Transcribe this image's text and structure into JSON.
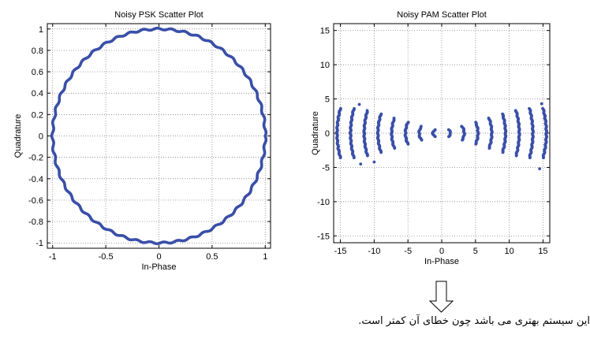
{
  "chart_data": [
    {
      "type": "scatter",
      "title": "Noisy PSK Scatter Plot",
      "xlabel": "In-Phase",
      "ylabel": "Quadrature",
      "xlim": [
        -1.05,
        1.05
      ],
      "ylim": [
        -1.05,
        1.05
      ],
      "xticks": [
        -1,
        -0.5,
        0,
        0.5,
        1
      ],
      "xtick_labels": [
        "-1",
        "-0.5",
        "0",
        "0.5",
        "1"
      ],
      "yticks": [
        -1,
        -0.8,
        -0.6,
        -0.4,
        -0.2,
        0,
        0.2,
        0.4,
        0.6,
        0.8,
        1
      ],
      "ytick_labels": [
        "-1",
        "-0.8",
        "-0.6",
        "-0.4",
        "-0.2",
        "0",
        "0.2",
        "0.4",
        "0.6",
        "0.8",
        "1"
      ],
      "grid": true,
      "shape": "circle",
      "radius": 1,
      "point_color": "#3a4fa8"
    },
    {
      "type": "scatter",
      "title": "Noisy PAM Scatter Plot",
      "xlabel": "In-Phase",
      "ylabel": "Quadrature",
      "xlim": [
        -16,
        16
      ],
      "ylim": [
        -16,
        16
      ],
      "xticks": [
        -15,
        -10,
        -5,
        0,
        5,
        10,
        15
      ],
      "xtick_labels": [
        "-15",
        "-10",
        "-5",
        "0",
        "5",
        "10",
        "15"
      ],
      "yticks": [
        -15,
        -10,
        -5,
        0,
        5,
        10,
        15
      ],
      "ytick_labels": [
        "-15",
        "-10",
        "-5",
        "0",
        "5",
        "10",
        "15"
      ],
      "grid": true,
      "clusters": [
        {
          "x": -15,
          "half_height": 3.6
        },
        {
          "x": -13,
          "half_height": 3.6
        },
        {
          "x": -11,
          "half_height": 3.3
        },
        {
          "x": -9,
          "half_height": 2.8
        },
        {
          "x": -7,
          "half_height": 2.2
        },
        {
          "x": -5,
          "half_height": 1.6
        },
        {
          "x": -3,
          "half_height": 1.0
        },
        {
          "x": -1,
          "half_height": 0.5
        },
        {
          "x": 1,
          "half_height": 0.5
        },
        {
          "x": 3,
          "half_height": 1.0
        },
        {
          "x": 5,
          "half_height": 1.6
        },
        {
          "x": 7,
          "half_height": 2.2
        },
        {
          "x": 9,
          "half_height": 2.8
        },
        {
          "x": 11,
          "half_height": 3.3
        },
        {
          "x": 13,
          "half_height": 3.6
        },
        {
          "x": 15,
          "half_height": 3.6
        }
      ],
      "outliers": [
        {
          "x": -12,
          "y": -4.5
        },
        {
          "x": -10,
          "y": -4.2
        },
        {
          "x": -12.2,
          "y": 4.2
        },
        {
          "x": 14.5,
          "y": -5.2
        },
        {
          "x": 14.8,
          "y": 4.3
        }
      ],
      "point_color": "#3a4fa8"
    }
  ],
  "annotation": {
    "arrow": "down-arrow",
    "caption": "این سیستم بهتری می باشد چون خطای آن کمتر است."
  }
}
